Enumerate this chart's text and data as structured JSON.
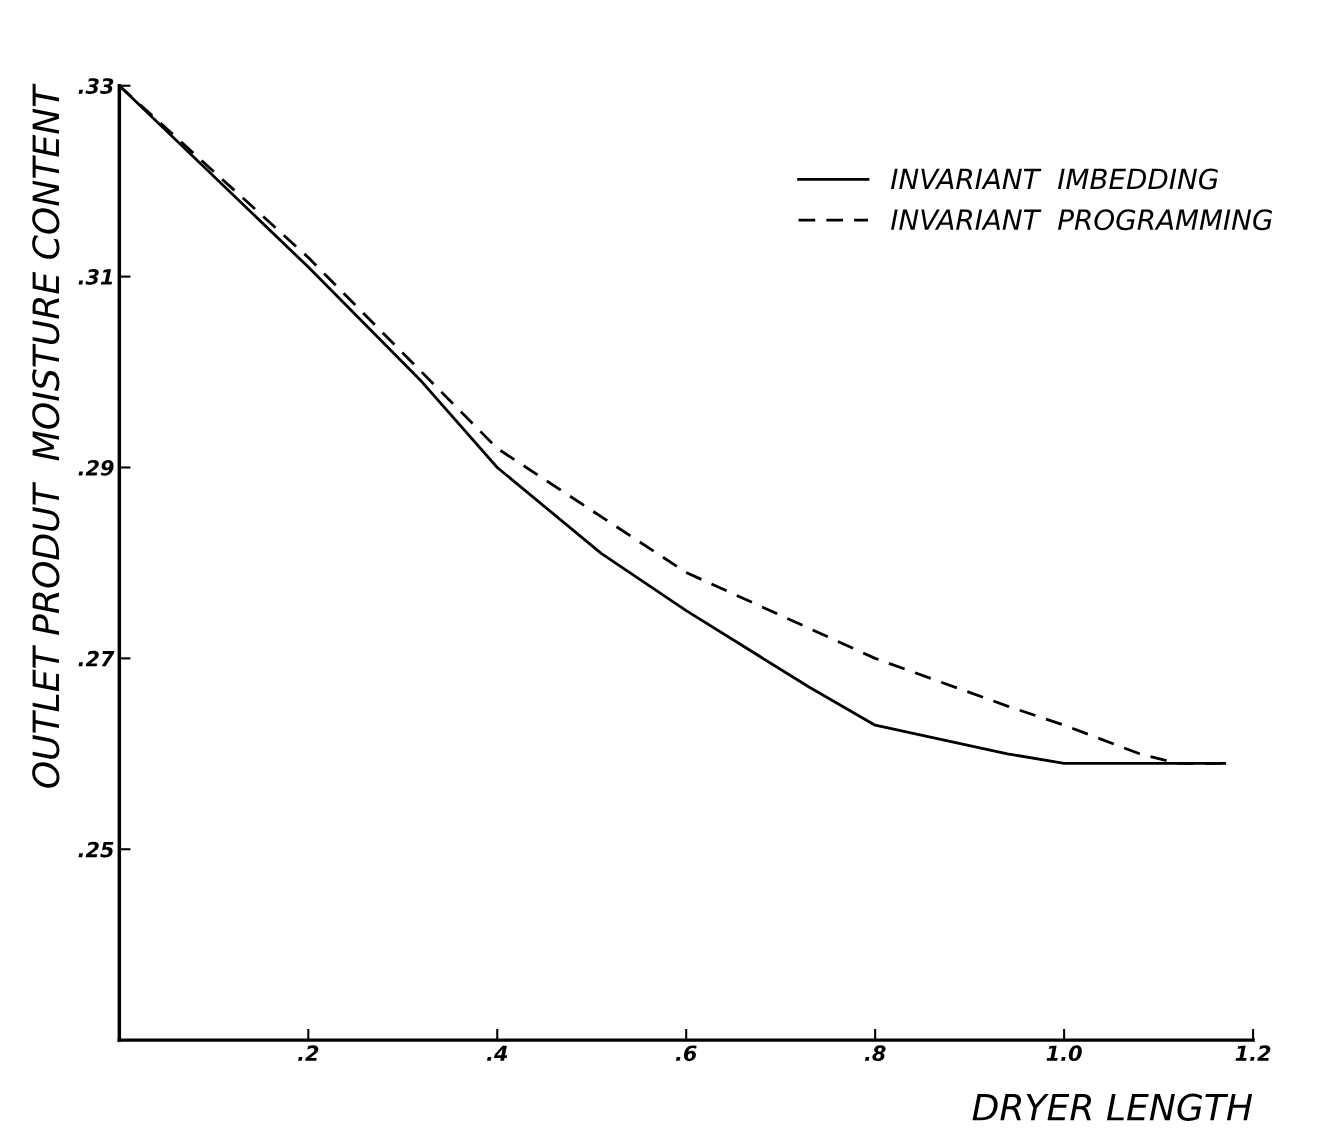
{
  "chart_data": {
    "type": "line",
    "xlabel": "DRYER LENGTH",
    "ylabel": "OUTLET PRODUT  MOISTURE CONTENT",
    "xlim": [
      0,
      1.2
    ],
    "ylim": [
      0.23,
      0.33
    ],
    "xticks": [
      {
        "value": 0.2,
        "label": ".2"
      },
      {
        "value": 0.4,
        "label": ".4"
      },
      {
        "value": 0.6,
        "label": ".6"
      },
      {
        "value": 0.8,
        "label": ".8"
      },
      {
        "value": 1.0,
        "label": "1.0"
      },
      {
        "value": 1.2,
        "label": "1.2"
      }
    ],
    "yticks": [
      {
        "value": 0.25,
        "label": ".25"
      },
      {
        "value": 0.27,
        "label": ".27"
      },
      {
        "value": 0.29,
        "label": ".29"
      },
      {
        "value": 0.31,
        "label": ".31"
      },
      {
        "value": 0.33,
        "label": ".33"
      }
    ],
    "grid": false,
    "legend": "top right",
    "marker": "none",
    "series": [
      {
        "name": "INVARIANT  IMBEDDING",
        "color": "#000000",
        "line_style": "solid",
        "x": [
          0,
          0.2,
          0.32,
          0.4,
          0.51,
          0.6,
          0.73,
          0.8,
          0.94,
          1.0,
          1.08,
          1.17
        ],
        "values": [
          0.33,
          0.311,
          0.299,
          0.29,
          0.281,
          0.275,
          0.267,
          0.263,
          0.26,
          0.259,
          0.259,
          0.259
        ]
      },
      {
        "name": "INVARIANT  PROGRAMMING",
        "color": "#000000",
        "line_style": "dashed",
        "x": [
          0,
          0.2,
          0.4,
          0.6,
          0.8,
          0.94,
          1.0,
          1.08,
          1.12,
          1.17
        ],
        "values": [
          0.33,
          0.312,
          0.292,
          0.279,
          0.27,
          0.265,
          0.263,
          0.26,
          0.259,
          0.259
        ]
      }
    ]
  }
}
